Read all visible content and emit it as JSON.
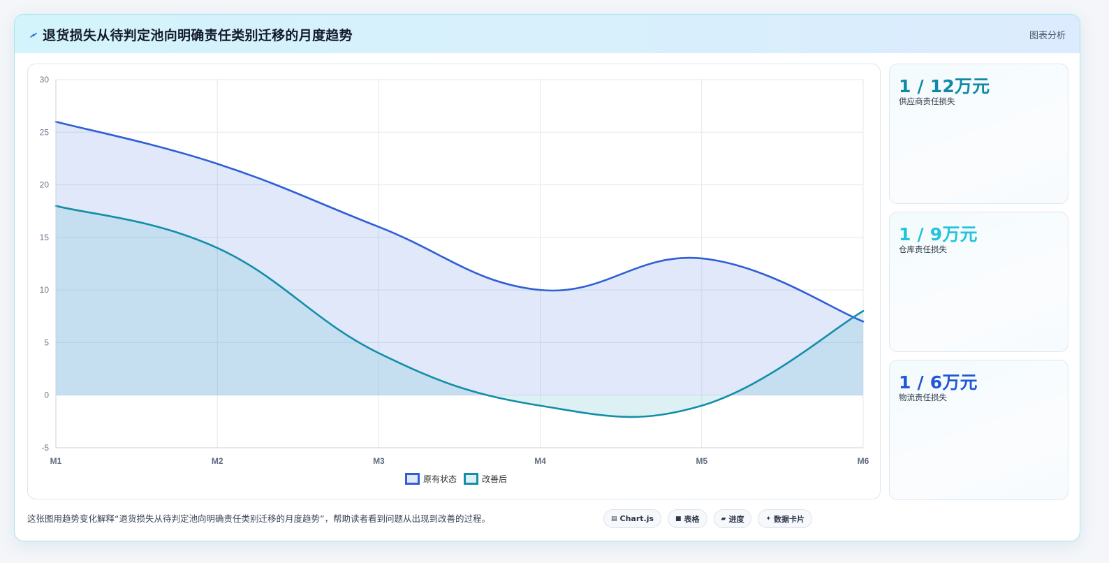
{
  "header": {
    "title": "退货损失从待判定池向明确责任类别迁移的月度趋势",
    "right_label": "图表分析"
  },
  "chart_data": {
    "type": "area",
    "categories": [
      "M1",
      "M2",
      "M3",
      "M4",
      "M5",
      "M6"
    ],
    "series": [
      {
        "name": "原有状态",
        "values": [
          26,
          22,
          16,
          10,
          13,
          7
        ],
        "color": "#2f5fd6",
        "fill": "rgba(120,155,235,0.23)"
      },
      {
        "name": "改善后",
        "values": [
          18,
          14,
          4,
          -1,
          -1,
          8
        ],
        "color": "#138ea8",
        "fill": "rgba(100,190,205,0.22)"
      }
    ],
    "ylim": [
      -5,
      30
    ],
    "yticks": [
      30,
      25,
      20,
      15,
      10,
      5,
      0,
      -5
    ],
    "grid": true,
    "legend_position": "bottom"
  },
  "stats": [
    {
      "value": "1 / 12万元",
      "label": "供应商责任损失",
      "color": "#1189a6"
    },
    {
      "value": "1 / 9万元",
      "label": "仓库责任损失",
      "color": "#22c3dc"
    },
    {
      "value": "1 / 6万元",
      "label": "物流责任损失",
      "color": "#2156d6"
    }
  ],
  "footer": {
    "caption": "这张图用趋势变化解释“退货损失从待判定池向明确责任类别迁移的月度趋势”，帮助读者看到问题从出现到改善的过程。",
    "chips": [
      {
        "glyph": "▤",
        "label": "Chart.js"
      },
      {
        "glyph": "■",
        "label": "表格"
      },
      {
        "glyph": "▰",
        "label": "进度"
      },
      {
        "glyph": "✦",
        "label": "数据卡片"
      }
    ]
  }
}
